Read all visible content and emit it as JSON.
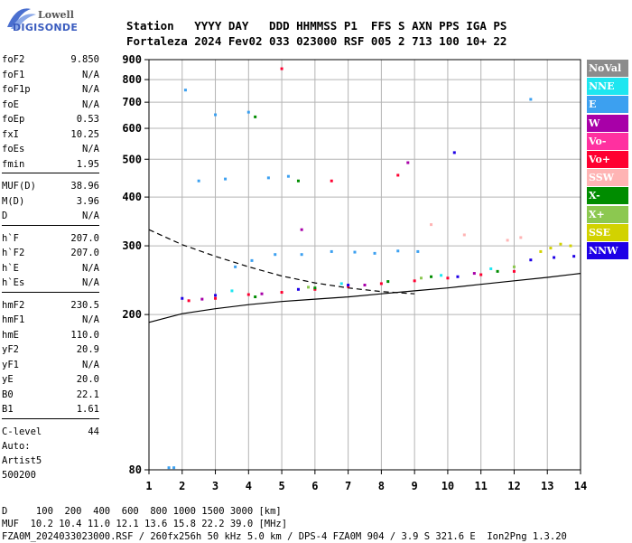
{
  "logo": {
    "top": "Lowell",
    "bottom": "DIGISONDE"
  },
  "header": {
    "line1": "Station   YYYY DAY   DDD HHMMSS P1  FFS S AXN PPS IGA PS",
    "line2": "Fortaleza 2024 Fev02 033 023000 RSF 005 2 713 100 10+ 22"
  },
  "params": {
    "g1": [
      {
        "name": "foF2",
        "value": "9.850"
      },
      {
        "name": "foF1",
        "value": "N/A"
      },
      {
        "name": "foF1p",
        "value": "N/A"
      },
      {
        "name": "foE",
        "value": "N/A"
      },
      {
        "name": "foEp",
        "value": "0.53"
      },
      {
        "name": "fxI",
        "value": "10.25"
      },
      {
        "name": "foEs",
        "value": "N/A"
      },
      {
        "name": "fmin",
        "value": "1.95"
      }
    ],
    "g2": [
      {
        "name": "MUF(D)",
        "value": "38.96"
      },
      {
        "name": "M(D)",
        "value": "3.96"
      },
      {
        "name": "D",
        "value": "N/A"
      }
    ],
    "g3": [
      {
        "name": "h`F",
        "value": "207.0"
      },
      {
        "name": "h`F2",
        "value": "207.0"
      },
      {
        "name": "h`E",
        "value": "N/A"
      },
      {
        "name": "h`Es",
        "value": "N/A"
      }
    ],
    "g4": [
      {
        "name": "hmF2",
        "value": "230.5"
      },
      {
        "name": "hmF1",
        "value": "N/A"
      },
      {
        "name": "hmE",
        "value": "110.0"
      },
      {
        "name": "yF2",
        "value": "20.9"
      },
      {
        "name": "yF1",
        "value": "N/A"
      },
      {
        "name": "yE",
        "value": "20.0"
      },
      {
        "name": "B0",
        "value": "22.1"
      },
      {
        "name": "B1",
        "value": "1.61"
      }
    ],
    "g5": [
      {
        "name": "C-level",
        "value": "44"
      }
    ]
  },
  "auto": {
    "line1": "Auto:",
    "line2": "Artist5",
    "line3": "500200"
  },
  "legend": [
    {
      "label": "NoVal",
      "color": "#8c8c8c"
    },
    {
      "label": "NNE",
      "color": "#1ee6f0"
    },
    {
      "label": "E",
      "color": "#3ca0f0"
    },
    {
      "label": "W",
      "color": "#a800a8"
    },
    {
      "label": "Vo-",
      "color": "#ff30a0"
    },
    {
      "label": "Vo+",
      "color": "#ff0030"
    },
    {
      "label": "SSW",
      "color": "#ffb4b4"
    },
    {
      "label": "X-",
      "color": "#008c00"
    },
    {
      "label": "X+",
      "color": "#8cc850"
    },
    {
      "label": "SSE",
      "color": "#d2d200"
    },
    {
      "label": "NNW",
      "color": "#1e00e6"
    }
  ],
  "footer": {
    "line1": "D     100  200  400  600  800 1000 1500 3000 [km]",
    "line2": "MUF  10.2 10.4 11.0 12.1 13.6 15.8 22.2 39.0 [MHz]",
    "line3": "FZA0M_2024033023000.RSF / 260fx256h 50 kHz 5.0 km / DPS-4 FZA0M 904 / 3.9 S 321.6 E  Ion2Png 1.3.20"
  },
  "chart_data": {
    "type": "scatter",
    "xlim": [
      1,
      14
    ],
    "ylim": [
      80,
      900
    ],
    "yscale": "log",
    "xticks": [
      1,
      2,
      3,
      4,
      5,
      6,
      7,
      8,
      9,
      10,
      11,
      12,
      13,
      14
    ],
    "yticks": [
      80,
      200,
      300,
      400,
      500,
      600,
      700,
      800,
      900
    ],
    "grid": true,
    "legend_position": "right",
    "series": [
      {
        "name": "E",
        "color": "#3ca0f0",
        "points": [
          [
            2.1,
            752
          ],
          [
            1.6,
            81
          ],
          [
            1.75,
            81
          ],
          [
            3.6,
            265
          ],
          [
            4.1,
            275
          ],
          [
            4.8,
            285
          ],
          [
            5.6,
            285
          ],
          [
            6.5,
            290
          ],
          [
            7.2,
            289
          ],
          [
            7.8,
            287
          ],
          [
            8.5,
            291
          ],
          [
            9.1,
            290
          ],
          [
            2.5,
            440
          ],
          [
            3.3,
            445
          ],
          [
            4.6,
            448
          ],
          [
            5.2,
            452
          ],
          [
            3.0,
            650
          ],
          [
            4.0,
            660
          ],
          [
            12.5,
            712
          ]
        ]
      },
      {
        "name": "Vo+",
        "color": "#ff0030",
        "points": [
          [
            2.2,
            217
          ],
          [
            3.0,
            220
          ],
          [
            4.0,
            225
          ],
          [
            5.0,
            228
          ],
          [
            6.0,
            232
          ],
          [
            7.0,
            236
          ],
          [
            8.0,
            240
          ],
          [
            9.0,
            244
          ],
          [
            10.0,
            248
          ],
          [
            11.0,
            253
          ],
          [
            12.0,
            258
          ],
          [
            5.0,
            853
          ],
          [
            8.5,
            455
          ],
          [
            6.5,
            440
          ]
        ]
      },
      {
        "name": "NNW",
        "color": "#1e00e6",
        "points": [
          [
            2.0,
            220
          ],
          [
            3.0,
            224
          ],
          [
            5.5,
            232
          ],
          [
            10.2,
            520
          ],
          [
            10.3,
            250
          ],
          [
            12.5,
            276
          ],
          [
            13.2,
            280
          ],
          [
            13.8,
            282
          ],
          [
            7.0,
            238
          ]
        ]
      },
      {
        "name": "SSE",
        "color": "#d2d200",
        "points": [
          [
            12.8,
            290
          ],
          [
            13.1,
            296
          ],
          [
            13.4,
            303
          ],
          [
            13.7,
            300
          ]
        ]
      },
      {
        "name": "X-",
        "color": "#008c00",
        "points": [
          [
            4.2,
            222
          ],
          [
            6.0,
            234
          ],
          [
            8.2,
            243
          ],
          [
            9.5,
            250
          ],
          [
            11.5,
            258
          ],
          [
            5.5,
            440
          ],
          [
            4.2,
            642
          ]
        ]
      },
      {
        "name": "W",
        "color": "#a800a8",
        "points": [
          [
            2.6,
            219
          ],
          [
            4.4,
            226
          ],
          [
            7.5,
            238
          ],
          [
            10.8,
            255
          ],
          [
            8.8,
            490
          ],
          [
            5.6,
            330
          ]
        ]
      },
      {
        "name": "SSW",
        "color": "#ffb4b4",
        "points": [
          [
            9.5,
            340
          ],
          [
            10.5,
            320
          ],
          [
            11.8,
            310
          ],
          [
            12.2,
            315
          ]
        ]
      },
      {
        "name": "NNE",
        "color": "#1ee6f0",
        "points": [
          [
            3.5,
            230
          ],
          [
            6.8,
            240
          ],
          [
            9.8,
            252
          ],
          [
            11.3,
            262
          ]
        ]
      },
      {
        "name": "X+",
        "color": "#8cc850",
        "points": [
          [
            5.8,
            235
          ],
          [
            9.2,
            248
          ],
          [
            12.0,
            265
          ]
        ]
      }
    ],
    "curves": [
      {
        "style": "solid",
        "points": [
          [
            1,
            191
          ],
          [
            2,
            201
          ],
          [
            3,
            207
          ],
          [
            4,
            212
          ],
          [
            5,
            216
          ],
          [
            6,
            219
          ],
          [
            7,
            222
          ],
          [
            8,
            226
          ],
          [
            9,
            230
          ],
          [
            10,
            234
          ],
          [
            11,
            239
          ],
          [
            12,
            244
          ],
          [
            13,
            249
          ],
          [
            14,
            255
          ]
        ]
      },
      {
        "style": "dashed",
        "points": [
          [
            1,
            330
          ],
          [
            2,
            302
          ],
          [
            3,
            282
          ],
          [
            4,
            265
          ],
          [
            5,
            251
          ],
          [
            6,
            241
          ],
          [
            7,
            234
          ],
          [
            8,
            229
          ],
          [
            9,
            226
          ]
        ]
      }
    ]
  }
}
